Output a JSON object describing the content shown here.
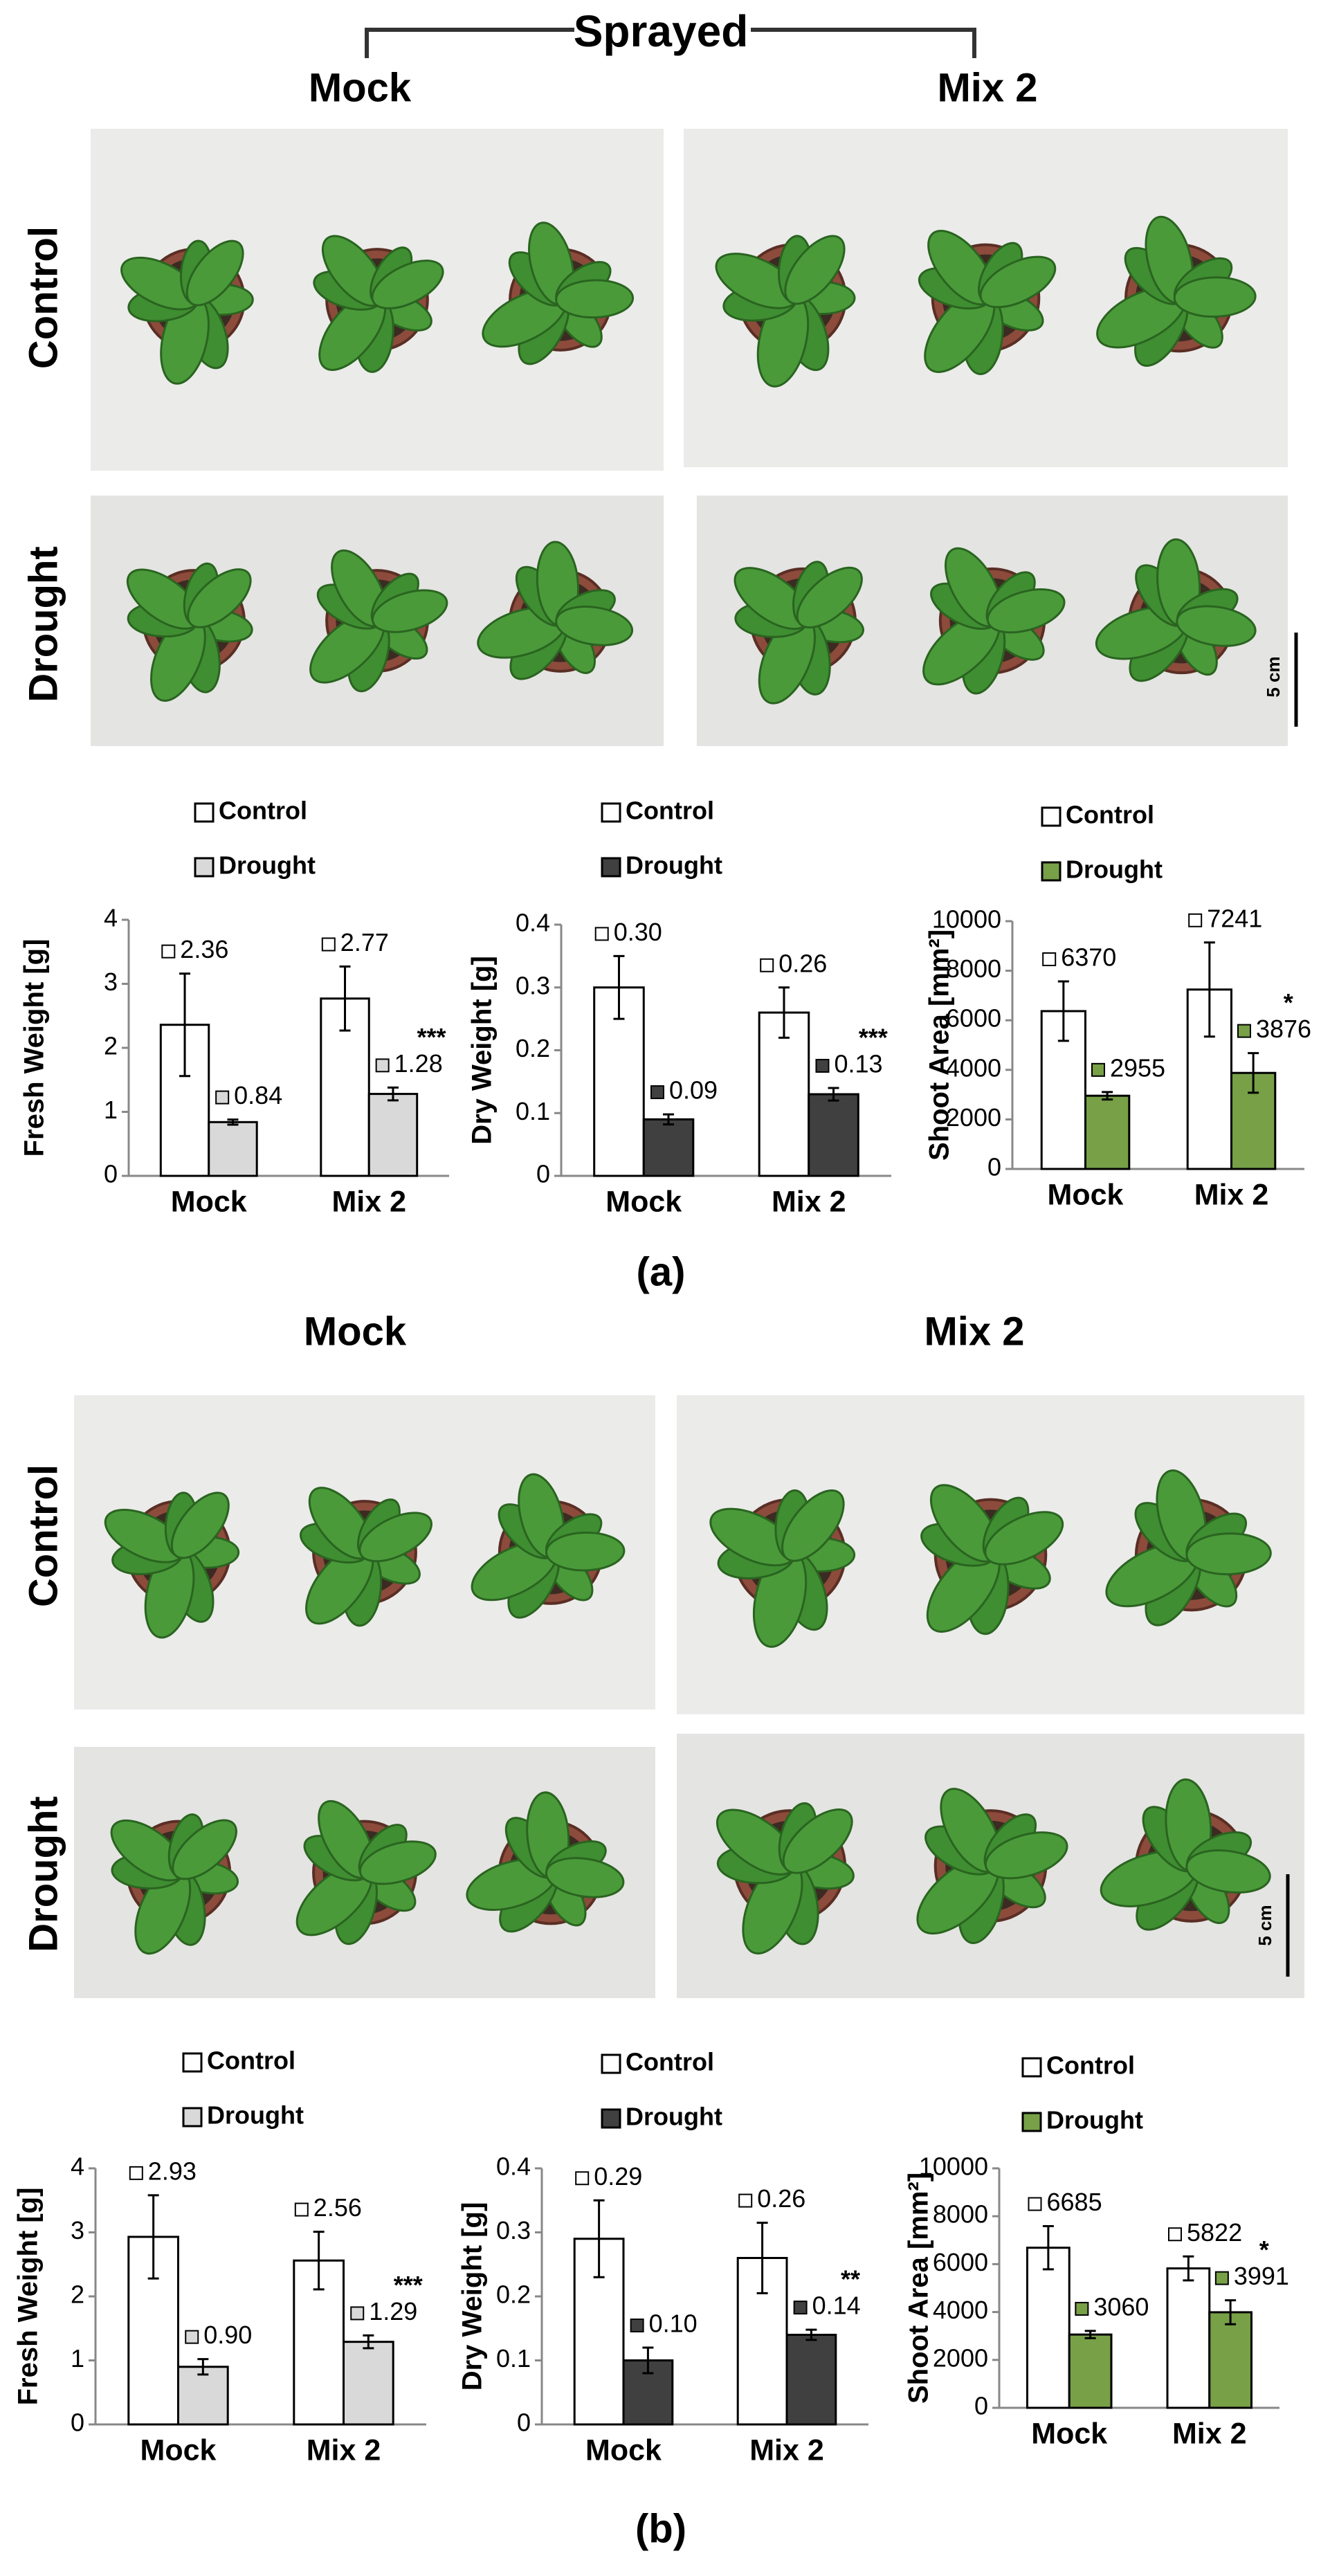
{
  "header": {
    "title": "Sprayed"
  },
  "panels": [
    {
      "columns": [
        "Mock",
        "Mix 2"
      ],
      "rows": [
        "Control",
        "Drought"
      ],
      "scale": "5 cm",
      "label": "(a)"
    },
    {
      "columns": [
        "Mock",
        "Mix 2"
      ],
      "rows": [
        "Control",
        "Drought"
      ],
      "scale": "5 cm",
      "label": "(b)"
    }
  ],
  "chart_data": [
    {
      "type": "bar",
      "y_label": "Fresh Weight [g]",
      "categories": [
        "Mock",
        "Mix 2"
      ],
      "ylim": [
        0,
        4
      ],
      "yticks": [
        0,
        1,
        2,
        3,
        4
      ],
      "series": [
        {
          "name": "Control",
          "color": "#ffffff",
          "values": [
            2.36,
            2.77
          ],
          "errors": [
            0.8,
            0.5
          ],
          "value_labels": [
            "2.36",
            "2.77"
          ]
        },
        {
          "name": "Drought",
          "color": "#d9d9d9",
          "values": [
            0.84,
            1.28
          ],
          "errors": [
            0.04,
            0.1
          ],
          "value_labels": [
            "0.84",
            "1.28"
          ],
          "significance": [
            null,
            "***"
          ]
        }
      ]
    },
    {
      "type": "bar",
      "y_label": "Dry Weight [g]",
      "categories": [
        "Mock",
        "Mix 2"
      ],
      "ylim": [
        0,
        0.4
      ],
      "yticks": [
        0,
        0.1,
        0.2,
        0.3,
        0.4
      ],
      "series": [
        {
          "name": "Control",
          "color": "#ffffff",
          "values": [
            0.3,
            0.26
          ],
          "errors": [
            0.05,
            0.04
          ],
          "value_labels": [
            "0.30",
            "0.26"
          ]
        },
        {
          "name": "Drought",
          "color": "#404040",
          "values": [
            0.09,
            0.13
          ],
          "errors": [
            0.008,
            0.01
          ],
          "value_labels": [
            "0.09",
            "0.13"
          ],
          "significance": [
            null,
            "***"
          ]
        }
      ]
    },
    {
      "type": "bar",
      "y_label": "Shoot Area [mm²]",
      "categories": [
        "Mock",
        "Mix 2"
      ],
      "ylim": [
        0,
        10000
      ],
      "yticks": [
        0,
        2000,
        4000,
        6000,
        8000,
        10000
      ],
      "series": [
        {
          "name": "Control",
          "color": "#ffffff",
          "values": [
            6370,
            7241
          ],
          "errors": [
            1200,
            1900
          ],
          "value_labels": [
            "6370",
            "7241"
          ]
        },
        {
          "name": "Drought",
          "color": "#77a047",
          "values": [
            2955,
            3876
          ],
          "errors": [
            150,
            800
          ],
          "value_labels": [
            "2955",
            "3876"
          ],
          "significance": [
            null,
            "*"
          ]
        }
      ]
    },
    {
      "type": "bar",
      "y_label": "Fresh Weight [g]",
      "categories": [
        "Mock",
        "Mix 2"
      ],
      "ylim": [
        0,
        4
      ],
      "yticks": [
        0,
        1,
        2,
        3,
        4
      ],
      "series": [
        {
          "name": "Control",
          "color": "#ffffff",
          "values": [
            2.93,
            2.56
          ],
          "errors": [
            0.65,
            0.45
          ],
          "value_labels": [
            "2.93",
            "2.56"
          ]
        },
        {
          "name": "Drought",
          "color": "#d9d9d9",
          "values": [
            0.9,
            1.29
          ],
          "errors": [
            0.12,
            0.1
          ],
          "value_labels": [
            "0.90",
            "1.29"
          ],
          "significance": [
            null,
            "***"
          ]
        }
      ]
    },
    {
      "type": "bar",
      "y_label": "Dry Weight [g]",
      "categories": [
        "Mock",
        "Mix 2"
      ],
      "ylim": [
        0,
        0.4
      ],
      "yticks": [
        0,
        0.1,
        0.2,
        0.3,
        0.4
      ],
      "series": [
        {
          "name": "Control",
          "color": "#ffffff",
          "values": [
            0.29,
            0.26
          ],
          "errors": [
            0.06,
            0.055
          ],
          "value_labels": [
            "0.29",
            "0.26"
          ]
        },
        {
          "name": "Drought",
          "color": "#404040",
          "values": [
            0.1,
            0.14
          ],
          "errors": [
            0.02,
            0.008
          ],
          "value_labels": [
            "0.10",
            "0.14"
          ],
          "significance": [
            null,
            "**"
          ]
        }
      ]
    },
    {
      "type": "bar",
      "y_label": "Shoot Area [mm²]",
      "categories": [
        "Mock",
        "Mix 2"
      ],
      "ylim": [
        0,
        10000
      ],
      "yticks": [
        0,
        2000,
        4000,
        6000,
        8000,
        10000
      ],
      "series": [
        {
          "name": "Control",
          "color": "#ffffff",
          "values": [
            6685,
            5822
          ],
          "errors": [
            900,
            500
          ],
          "value_labels": [
            "6685",
            "5822"
          ]
        },
        {
          "name": "Drought",
          "color": "#77a047",
          "values": [
            3060,
            3991
          ],
          "errors": [
            150,
            500
          ],
          "value_labels": [
            "3060",
            "3991"
          ],
          "significance": [
            null,
            "*"
          ]
        }
      ]
    }
  ]
}
